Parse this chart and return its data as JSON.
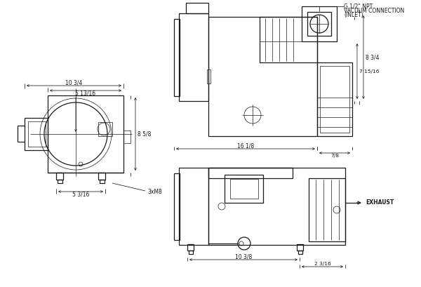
{
  "bg_color": "#ffffff",
  "line_color": "#1a1a1a",
  "text_color": "#1a1a1a",
  "annotations": {
    "top_label1": "G 1/2\" NPT",
    "top_label2": "VACUUM CONNECTION",
    "top_label3": "(INLET)",
    "exhaust": "EXHAUST",
    "dim_1034": "10 3/4",
    "dim_5_13_16": "5 13/16",
    "dim_8_58": "8 5/8",
    "dim_5_316": "5 3/16",
    "dim_3xM8": "3xM8",
    "dim_7_8": "7/8",
    "dim_16_18": "16 1/8",
    "dim_8_34": "8 3/4",
    "dim_7_15_16": "7 15/16",
    "dim_10_38": "10 3/8",
    "dim_2_3_16": "2 3/16"
  }
}
